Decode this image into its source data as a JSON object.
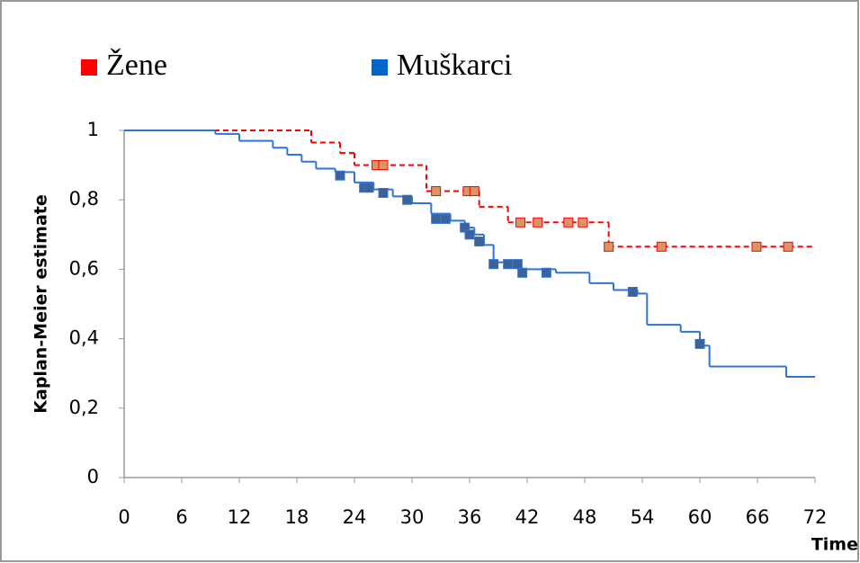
{
  "chart_data": {
    "type": "km",
    "y_label": "Kaplan-Meier estimate",
    "x_label": "Time",
    "xlim": [
      0,
      72
    ],
    "xticks": [
      0,
      6,
      12,
      18,
      24,
      30,
      36,
      42,
      48,
      54,
      60,
      66,
      72
    ],
    "ylim": [
      0,
      1
    ],
    "yticks": [
      0,
      {
        "value": 0.2,
        "label": "0,2"
      },
      {
        "value": 0.4,
        "label": "0,4"
      },
      {
        "value": 0.6,
        "label": "0,6"
      },
      {
        "value": 0.8,
        "label": "0,8"
      },
      1
    ],
    "series": [
      {
        "name": "Žene",
        "color": "#ff0000",
        "line_color": "#ff0000",
        "dashed": true,
        "censor_color": "#d99565",
        "x": [
          0,
          19.5,
          22.5,
          24,
          31.5,
          37,
          40,
          50.5,
          72
        ],
        "y": [
          1,
          0.965,
          0.935,
          0.9,
          0.825,
          0.78,
          0.735,
          0.665,
          0.665
        ],
        "censored_x": [
          26.3,
          27,
          32.5,
          35.8,
          36.5,
          41.3,
          43.1,
          46.3,
          47.8,
          50.5,
          56,
          65.9,
          69.2
        ],
        "censored_y": [
          0.9,
          0.9,
          0.825,
          0.825,
          0.825,
          0.735,
          0.735,
          0.735,
          0.735,
          0.665,
          0.665,
          0.665,
          0.665
        ]
      },
      {
        "name": "Muškarci",
        "color": "#0066cc",
        "line_color": "#2e75d6",
        "dashed": false,
        "censor_color": "#3d6199",
        "x": [
          0,
          9.5,
          12,
          15.5,
          17,
          18.5,
          20,
          22,
          24,
          26,
          28,
          30,
          32,
          34,
          35.5,
          36.5,
          37.5,
          38.5,
          41,
          45,
          48.5,
          51,
          53.5,
          54.5,
          58,
          60,
          61,
          69,
          72
        ],
        "y": [
          1,
          0.99,
          0.97,
          0.95,
          0.93,
          0.91,
          0.89,
          0.88,
          0.85,
          0.83,
          0.81,
          0.79,
          0.76,
          0.74,
          0.72,
          0.7,
          0.67,
          0.62,
          0.6,
          0.59,
          0.56,
          0.54,
          0.53,
          0.44,
          0.42,
          0.38,
          0.32,
          0.29,
          0.29
        ],
        "censored_x": [
          22.5,
          25,
          25.5,
          27,
          29.5,
          32.5,
          33.5,
          35.5,
          36,
          37,
          38.5,
          40,
          41,
          41.5,
          44,
          53,
          60
        ],
        "censored_y": [
          0.87,
          0.835,
          0.835,
          0.82,
          0.8,
          0.745,
          0.745,
          0.72,
          0.7,
          0.68,
          0.615,
          0.615,
          0.615,
          0.59,
          0.59,
          0.535,
          0.385
        ]
      }
    ]
  }
}
